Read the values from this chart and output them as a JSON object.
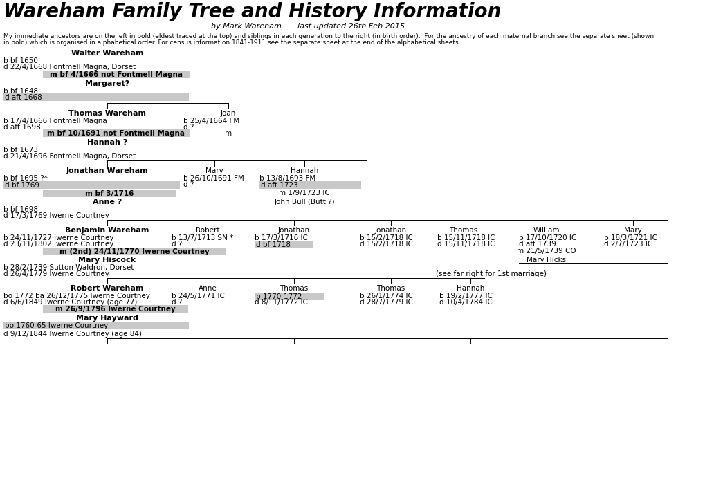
{
  "bg_color": "#ffffff",
  "gray_color": "#c8c8c8",
  "title": "Wareham Family Tree and History Information",
  "subtitle_left": "by Mark Wareham",
  "subtitle_right": "last updated 26th Feb 2015",
  "intro1": "My immediate ancestors are on the left in bold (eldest traced at the top) and siblings in each generation to the right (in birth order).  For the ancestry of each maternal branch see the separate sheet (shown",
  "intro2": "in bold) which is organised in alphabetical order. For census information 1841-1911 see the separate sheet at the end of the alphabetical sheets."
}
